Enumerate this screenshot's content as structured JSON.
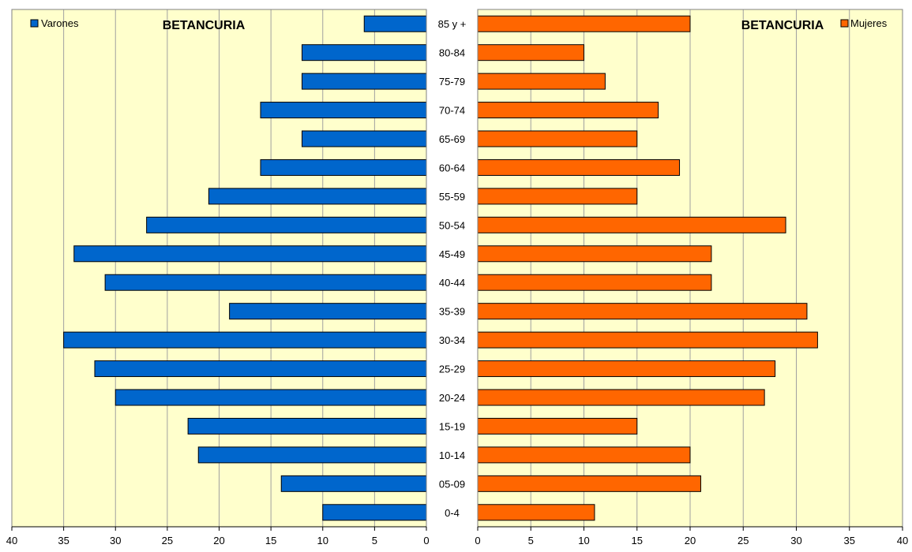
{
  "chart_data": [
    {
      "type": "bar",
      "orientation": "horizontal",
      "direction": "reversed",
      "title": "BETANCURIA",
      "legend": "top-left",
      "categories": [
        "0-4",
        "05-09",
        "10-14",
        "15-19",
        "20-24",
        "25-29",
        "30-34",
        "35-39",
        "40-44",
        "45-49",
        "50-54",
        "55-59",
        "60-64",
        "65-69",
        "70-74",
        "75-79",
        "80-84",
        "85 y +"
      ],
      "series": [
        {
          "name": "Varones",
          "color": "#0066CC",
          "values": [
            10,
            14,
            22,
            23,
            30,
            32,
            35,
            19,
            31,
            34,
            27,
            21,
            16,
            12,
            16,
            12,
            12,
            6
          ]
        }
      ],
      "xlim": [
        0,
        40
      ],
      "xticks": [
        40,
        35,
        30,
        25,
        20,
        15,
        10,
        5,
        0
      ],
      "grid": true
    },
    {
      "type": "bar",
      "orientation": "horizontal",
      "title": "BETANCURIA",
      "legend": "top-right",
      "categories": [
        "0-4",
        "05-09",
        "10-14",
        "15-19",
        "20-24",
        "25-29",
        "30-34",
        "35-39",
        "40-44",
        "45-49",
        "50-54",
        "55-59",
        "60-64",
        "65-69",
        "70-74",
        "75-79",
        "80-84",
        "85 y +"
      ],
      "series": [
        {
          "name": "Mujeres",
          "color": "#FF6600",
          "values": [
            11,
            21,
            20,
            15,
            27,
            28,
            32,
            31,
            22,
            22,
            29,
            15,
            19,
            15,
            17,
            12,
            10,
            20
          ]
        }
      ],
      "xlim": [
        0,
        40
      ],
      "xticks": [
        0,
        5,
        10,
        15,
        20,
        25,
        30,
        35,
        40
      ],
      "grid": true
    }
  ],
  "colors": {
    "plot_background": "#FFFFCC",
    "gridline": "#A0A0A0",
    "bar_outline": "#000000"
  }
}
